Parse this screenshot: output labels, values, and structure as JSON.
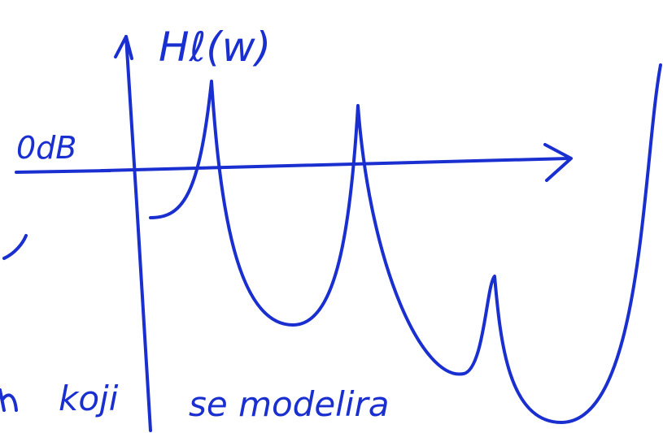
{
  "sketch": {
    "function_label": "Hℓ(w)",
    "level_label": "0dB",
    "notes": [
      "koji",
      "se modelira"
    ]
  }
}
